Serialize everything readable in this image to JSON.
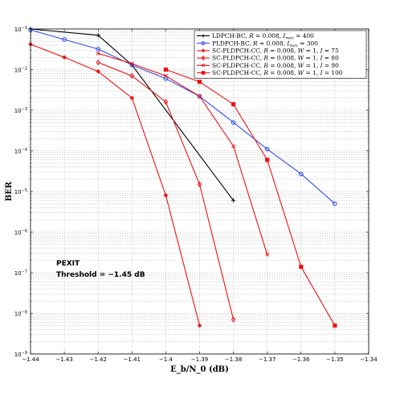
{
  "chart_data": {
    "type": "line",
    "xlabel": "E_b/N_0 (dB)",
    "ylabel": "BER",
    "xlim": [
      -1.44,
      -1.34
    ],
    "ylim_log10": [
      -9,
      -1
    ],
    "y_scale": "log",
    "grid": true,
    "legend_position": "top-right",
    "x_tick_labels": [
      "-1.44",
      "-1.43",
      "-1.42",
      "-1.41",
      "-1.4",
      "-1.39",
      "-1.38",
      "-1.37",
      "-1.36",
      "-1.35",
      "-1.34"
    ],
    "y_tick_exponents": [
      -1,
      -2,
      -3,
      -4,
      -5,
      -6,
      -7,
      -8,
      -9
    ],
    "annotation": [
      "PEXIT",
      "Threshold = -1.45 dB"
    ],
    "series": [
      {
        "legend_parts": [
          "LDPCH-BC, ",
          "R",
          " = 0.008, ",
          "I",
          "max",
          " = 400"
        ],
        "color": "#000000",
        "marker": "plus",
        "x": [
          -1.44,
          -1.42,
          -1.41,
          -1.38
        ],
        "y": [
          0.1,
          0.07,
          0.013,
          6e-06
        ]
      },
      {
        "legend_parts": [
          "PLDPCH-BC, ",
          "R",
          " = 0.008, ",
          "I",
          "max",
          " = 300"
        ],
        "color": "#2f4ef0",
        "marker": "circle",
        "x": [
          -1.44,
          -1.43,
          -1.42,
          -1.41,
          -1.4,
          -1.39,
          -1.38,
          -1.37,
          -1.36,
          -1.35
        ],
        "y": [
          0.095,
          0.055,
          0.032,
          0.013,
          0.006,
          0.0022,
          0.0005,
          0.00011,
          2.7e-05,
          5e-06
        ]
      },
      {
        "legend_parts": [
          "SC-PLDPCH-CC, ",
          "R",
          " = 0.008, ",
          "W",
          " = 1, ",
          "I",
          "",
          " = 75"
        ],
        "color": "#ee1111",
        "marker": "star",
        "x": [
          -1.44,
          -1.43,
          -1.42,
          -1.41,
          -1.4,
          -1.39
        ],
        "y": [
          0.042,
          0.02,
          0.009,
          0.002,
          8e-06,
          5e-09
        ]
      },
      {
        "legend_parts": [
          "SC-PLDPCH-CC, ",
          "R",
          " = 0.008, ",
          "W",
          " = 1, ",
          "I",
          "",
          " = 80"
        ],
        "color": "#ee1111",
        "marker": "diamond",
        "x": [
          -1.42,
          -1.41,
          -1.4,
          -1.39,
          -1.38
        ],
        "y": [
          0.015,
          0.007,
          0.0016,
          1.5e-05,
          7e-09
        ]
      },
      {
        "legend_parts": [
          "SC-PLDPCH-CC, ",
          "R",
          " = 0.008, ",
          "W",
          " = 1, ",
          "I",
          "",
          " = 90"
        ],
        "color": "#ee1111",
        "marker": "x",
        "x": [
          -1.42,
          -1.41,
          -1.4,
          -1.39,
          -1.38,
          -1.37
        ],
        "y": [
          0.025,
          0.014,
          0.007,
          0.0022,
          0.00013,
          2.8e-07
        ]
      },
      {
        "legend_parts": [
          "SC-PLDPCH-CC, ",
          "R",
          " = 0.008, ",
          "W",
          " = 1, ",
          "I",
          "",
          " = 100"
        ],
        "color": "#ee1111",
        "marker": "square",
        "x": [
          -1.4,
          -1.39,
          -1.38,
          -1.37,
          -1.36,
          -1.35
        ],
        "y": [
          0.01,
          0.005,
          0.0014,
          6e-05,
          1.4e-07,
          5e-09
        ]
      }
    ]
  }
}
